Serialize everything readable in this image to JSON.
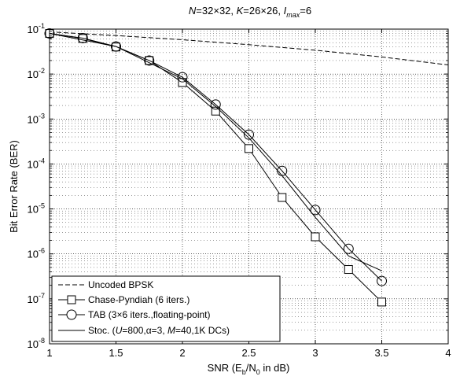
{
  "chart_data": {
    "type": "line",
    "title": "N=32×32,  K=26×26, I_max=6",
    "title_parts": {
      "n_part": "N",
      "n_value": "=32×32,  ",
      "k_part": "K",
      "k_value": "=26×26, ",
      "i_part": "I",
      "i_sub": "max",
      "i_value": "=6"
    },
    "xlabel": "SNR (E_b/N_0 in dB)",
    "xlabel_parts": {
      "prefix": "SNR (E",
      "sub1": "b",
      "mid": "/N",
      "sub2": "0",
      "suffix": " in dB)"
    },
    "ylabel": "Bit Error Rate (BER)",
    "xlim": [
      1,
      4
    ],
    "ylim": [
      1e-08,
      0.1
    ],
    "yscale": "log",
    "grid": true,
    "legend_position": "bottom-left",
    "x_ticks": [
      "1",
      "1.5",
      "2",
      "2.5",
      "3",
      "3.5",
      "4"
    ],
    "y_ticks": [
      {
        "base": "10",
        "exp": "-8"
      },
      {
        "base": "10",
        "exp": "-7"
      },
      {
        "base": "10",
        "exp": "-6"
      },
      {
        "base": "10",
        "exp": "-5"
      },
      {
        "base": "10",
        "exp": "-4"
      },
      {
        "base": "10",
        "exp": "-3"
      },
      {
        "base": "10",
        "exp": "-2"
      },
      {
        "base": "10",
        "exp": "-1"
      }
    ],
    "series": [
      {
        "name": "Uncoded BPSK",
        "style": "dashed",
        "marker": "none",
        "x": [
          1,
          1.5,
          2,
          2.5,
          3,
          3.5,
          4
        ],
        "y": [
          0.087,
          0.072,
          0.058,
          0.045,
          0.034,
          0.024,
          0.016
        ]
      },
      {
        "name": "Chase-Pyndiah (6 iters.)",
        "style": "solid",
        "marker": "square",
        "x": [
          1,
          1.25,
          1.5,
          1.75,
          2,
          2.25,
          2.5,
          2.75,
          3,
          3.25,
          3.5
        ],
        "y": [
          0.08,
          0.062,
          0.04,
          0.02,
          0.0065,
          0.0015,
          0.00022,
          1.8e-05,
          2.4e-06,
          4.5e-07,
          8.5e-08
        ]
      },
      {
        "name": "TAB (3×6 iters.,floating-point)",
        "style": "solid",
        "marker": "circle",
        "x": [
          1,
          1.25,
          1.5,
          1.75,
          2,
          2.25,
          2.5,
          2.75,
          3,
          3.25,
          3.5
        ],
        "y": [
          0.08,
          0.063,
          0.041,
          0.02,
          0.0085,
          0.0021,
          0.00045,
          7e-05,
          9.5e-06,
          1.3e-06,
          2.5e-07
        ]
      },
      {
        "name": "Stoc. (U=800,α=3, M=40,1K DCs)",
        "style": "solid",
        "marker": "none",
        "x": [
          1,
          1.5,
          2,
          2.25,
          2.5,
          2.75,
          3,
          3.25,
          3.5
        ],
        "y": [
          0.08,
          0.041,
          0.0078,
          0.0019,
          0.00038,
          5.5e-05,
          6.5e-06,
          9e-07,
          4.2e-07
        ]
      }
    ],
    "legend_parts": {
      "uncoded": "Uncoded BPSK",
      "chase": "Chase-Pyndiah (6 iters.)",
      "tab": "TAB (3×6 iters.,floating-point)",
      "stoc_a": "Stoc. (",
      "stoc_u": "U",
      "stoc_b": "=800,α=3, ",
      "stoc_m": "M",
      "stoc_c": "=40,1K DCs)"
    }
  }
}
